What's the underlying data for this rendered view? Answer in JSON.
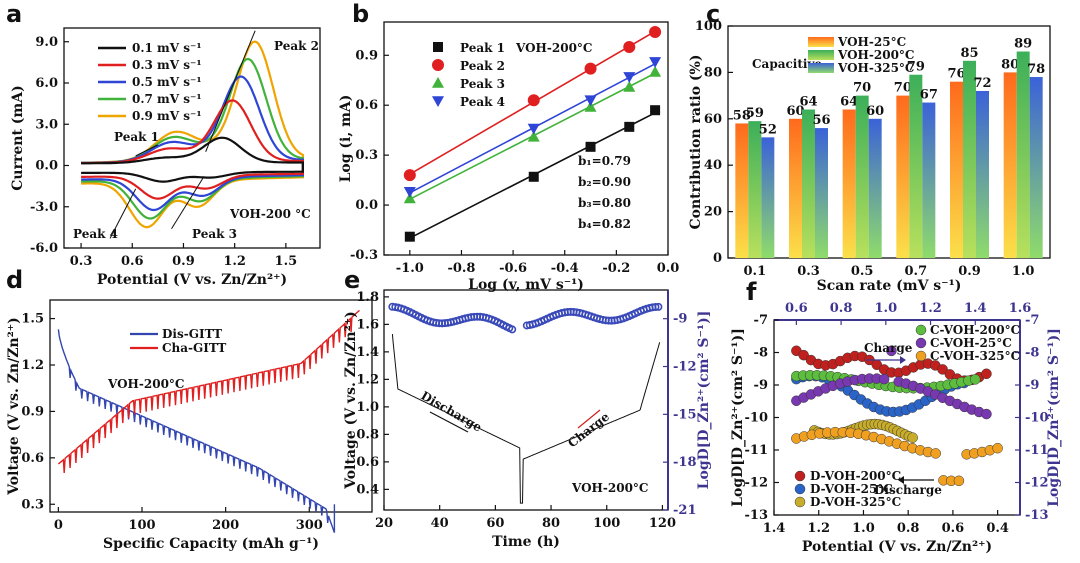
{
  "chart_data": [
    {
      "id": "a",
      "type": "line",
      "title": "a",
      "xlabel": "Potential (V vs. Zn/Zn²⁺)",
      "ylabel": "Current (mA)",
      "xlim": [
        0.2,
        1.7
      ],
      "ylim": [
        -6.0,
        10.0
      ],
      "xticks": [
        "0.3",
        "0.6",
        "0.9",
        "1.2",
        "1.5"
      ],
      "yticks": [
        "9.0",
        "6.0",
        "3.0",
        "0.0",
        "-3.0",
        "-6.0"
      ],
      "legend": [
        "0.1 mV s⁻¹",
        "0.3 mV s⁻¹",
        "0.5 mV s⁻¹",
        "0.7 mV s⁻¹",
        "0.9 mV s⁻¹"
      ],
      "series": [
        {
          "name": "0.1 mV s⁻¹",
          "color": "#111111",
          "scale": 0.2,
          "shift": 0.0
        },
        {
          "name": "0.3 mV s⁻¹",
          "color": "#e02020",
          "scale": 0.5,
          "shift": 0.06
        },
        {
          "name": "0.5 mV s⁻¹",
          "color": "#2f45d6",
          "scale": 0.7,
          "shift": 0.11
        },
        {
          "name": "0.7 mV s⁻¹",
          "color": "#41b23a",
          "scale": 0.85,
          "shift": 0.15
        },
        {
          "name": "0.9 mV s⁻¹",
          "color": "#f0a400",
          "scale": 1.0,
          "shift": 0.19
        }
      ],
      "annotations": [
        "Peak 1",
        "Peak 2",
        "Peak 3",
        "Peak 4",
        "VOH-200 °C"
      ]
    },
    {
      "id": "b",
      "type": "scatter",
      "title": "b",
      "xlabel": "Log (v, mV s⁻¹)",
      "ylabel": "Log (i, mA)",
      "xlim": [
        -1.1,
        0.0
      ],
      "ylim": [
        -0.3,
        1.1
      ],
      "xticks": [
        "-1.0",
        "-0.8",
        "-0.6",
        "-0.4",
        "-0.2",
        "0.0"
      ],
      "yticks": [
        "-0.3",
        "0.0",
        "0.3",
        "0.6",
        "0.9"
      ],
      "x": [
        -1.0,
        -0.52,
        -0.3,
        -0.15,
        -0.05
      ],
      "series": [
        {
          "name": "Peak 1",
          "color": "#111111",
          "marker": "square",
          "values": [
            -0.19,
            0.17,
            0.35,
            0.47,
            0.57
          ]
        },
        {
          "name": "Peak 2",
          "color": "#e02020",
          "marker": "circle",
          "values": [
            0.18,
            0.63,
            0.82,
            0.95,
            1.04
          ]
        },
        {
          "name": "Peak 3",
          "color": "#41b23a",
          "marker": "triangle-up",
          "values": [
            0.04,
            0.41,
            0.59,
            0.71,
            0.8
          ]
        },
        {
          "name": "Peak 4",
          "color": "#2f45d6",
          "marker": "triangle-down",
          "values": [
            0.08,
            0.46,
            0.63,
            0.77,
            0.86
          ]
        }
      ],
      "fit_labels": [
        "b₁=0.79",
        "b₂=0.90",
        "b₃=0.80",
        "b₄=0.82"
      ],
      "annotation": "VOH-200°C"
    },
    {
      "id": "c",
      "type": "bar",
      "title": "c",
      "xlabel": "Scan rate (mV s⁻¹)",
      "ylabel": "Contribution ratio (%)",
      "ylim": [
        0,
        100
      ],
      "yticks": [
        "0",
        "20",
        "40",
        "60",
        "80",
        "100"
      ],
      "categories": [
        "0.1",
        "0.3",
        "0.5",
        "0.7",
        "0.9",
        "1.0"
      ],
      "series": [
        {
          "name": "VOH-25°C",
          "values": [
            58,
            60,
            64,
            70,
            76,
            80
          ]
        },
        {
          "name": "VOH-200°C",
          "values": [
            59,
            64,
            70,
            79,
            85,
            89
          ]
        },
        {
          "name": "VOH-325°C",
          "values": [
            52,
            56,
            60,
            67,
            72,
            78
          ]
        }
      ],
      "legend_title": "Capacitive"
    },
    {
      "id": "d",
      "type": "line",
      "title": "d",
      "xlabel": "Specific Capacity (mAh g⁻¹)",
      "ylabel": "Voltage (V vs. Zn/Zn²⁺)",
      "xlim": [
        -10,
        375
      ],
      "ylim": [
        0.25,
        1.62
      ],
      "xticks": [
        "0",
        "100",
        "200",
        "300"
      ],
      "yticks": [
        "1.5",
        "1.2",
        "0.9",
        "0.6",
        "0.3"
      ],
      "series": [
        {
          "name": "Dis-GITT",
          "color": "#3346b0"
        },
        {
          "name": "Cha-GITT",
          "color": "#e02020"
        }
      ],
      "annotation": "VOH-200°C"
    },
    {
      "id": "e",
      "type": "line",
      "title": "e",
      "xlabel": "Time (h)",
      "ylabel": "Voltage (V vs. Zn/Zn²⁺)",
      "y2label": "LogD[D_Zn²⁺(cm² S⁻¹)]",
      "xlim": [
        20,
        122
      ],
      "ylim": [
        0.25,
        1.85
      ],
      "y2lim": [
        -21,
        -7.2
      ],
      "xticks": [
        "20",
        "40",
        "60",
        "80",
        "100",
        "120"
      ],
      "yticks": [
        "1.8",
        "1.6",
        "1.4",
        "1.2",
        "1.0",
        "0.8",
        "0.6",
        "0.4"
      ],
      "y2ticks": [
        "-9",
        "-12",
        "-15",
        "-18",
        "-21"
      ],
      "annotations": [
        "Discharge",
        "Charge",
        "VOH-200°C"
      ]
    },
    {
      "id": "f",
      "type": "scatter",
      "title": "f",
      "xlabel": "Potential (V vs. Zn/Zn²⁺)",
      "ylabel": "LogD[D_Zn²⁺(cm² S⁻¹)]",
      "y2label": "LogD[D_Zn²⁺(cm² S⁻¹)]",
      "xlim_bottom": [
        1.4,
        0.3
      ],
      "xlim_top": [
        0.5,
        1.6
      ],
      "ylim": [
        -13,
        -7
      ],
      "xticks_bottom": [
        "1.4",
        "1.2",
        "1.0",
        "0.8",
        "0.6",
        "0.4"
      ],
      "xticks_top": [
        "0.6",
        "0.8",
        "1.0",
        "1.2",
        "1.4",
        "1.6"
      ],
      "yticks": [
        "-7",
        "-8",
        "-9",
        "-10",
        "-11",
        "-12",
        "-13"
      ],
      "series": [
        {
          "name": "D-VOH-200°C",
          "color": "#c0201e"
        },
        {
          "name": "D-VOH-25°C",
          "color": "#2a64c8"
        },
        {
          "name": "D-VOH-325°C",
          "color": "#c8ad2a"
        },
        {
          "name": "C-VOH-200°C",
          "color": "#5cbd3e"
        },
        {
          "name": "C-VOH-25°C",
          "color": "#7838b0"
        },
        {
          "name": "C-VOH-325°C",
          "color": "#f0a020"
        }
      ],
      "annotations": [
        "Charge",
        "Discharge"
      ]
    }
  ]
}
